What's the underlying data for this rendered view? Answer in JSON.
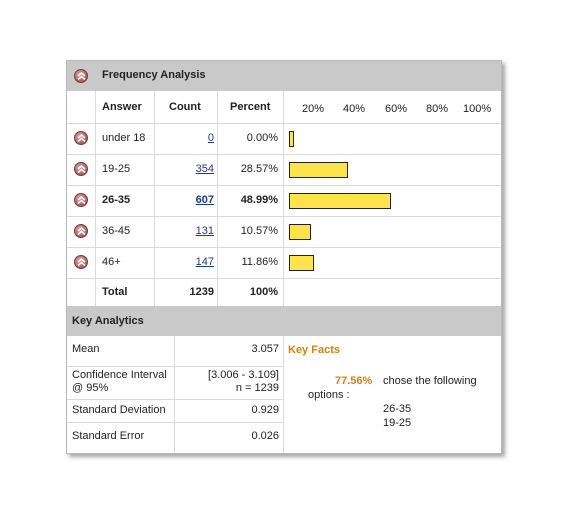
{
  "frequency": {
    "title": "Frequency Analysis",
    "headers": {
      "answer": "Answer",
      "count": "Count",
      "percent": "Percent"
    },
    "scale_ticks": [
      "20%",
      "40%",
      "60%",
      "80%",
      "100%"
    ],
    "rows": [
      {
        "answer": "under 18",
        "count": "0",
        "percent": "0.00%",
        "value": 0.0,
        "highlight": false
      },
      {
        "answer": "19-25",
        "count": "354",
        "percent": "28.57%",
        "value": 28.57,
        "highlight": false
      },
      {
        "answer": "26-35",
        "count": "607",
        "percent": "48.99%",
        "value": 48.99,
        "highlight": true
      },
      {
        "answer": "36-45",
        "count": "131",
        "percent": "10.57%",
        "value": 10.57,
        "highlight": false
      },
      {
        "answer": "46+",
        "count": "147",
        "percent": "11.86%",
        "value": 11.86,
        "highlight": false
      }
    ],
    "total": {
      "label": "Total",
      "count": "1239",
      "percent": "100%"
    },
    "bar_color": "#ffe34a"
  },
  "analytics": {
    "title": "Key Analytics",
    "mean": {
      "label": "Mean",
      "value": "3.057"
    },
    "ci": {
      "label_line1": "Confidence Interval",
      "label_line2": "@ 95%",
      "value_line1": "[3.006 - 3.109]",
      "value_line2": "n = 1239"
    },
    "std_dev": {
      "label": "Standard Deviation",
      "value": "0.929"
    },
    "std_err": {
      "label": "Standard Error",
      "value": "0.026"
    }
  },
  "key_facts": {
    "title": "Key Facts",
    "percent": "77.56%",
    "text_line1": "chose the following",
    "text_line2": "options :",
    "options": [
      "26-35",
      "19-25"
    ],
    "accent_color": "#e07a13"
  }
}
